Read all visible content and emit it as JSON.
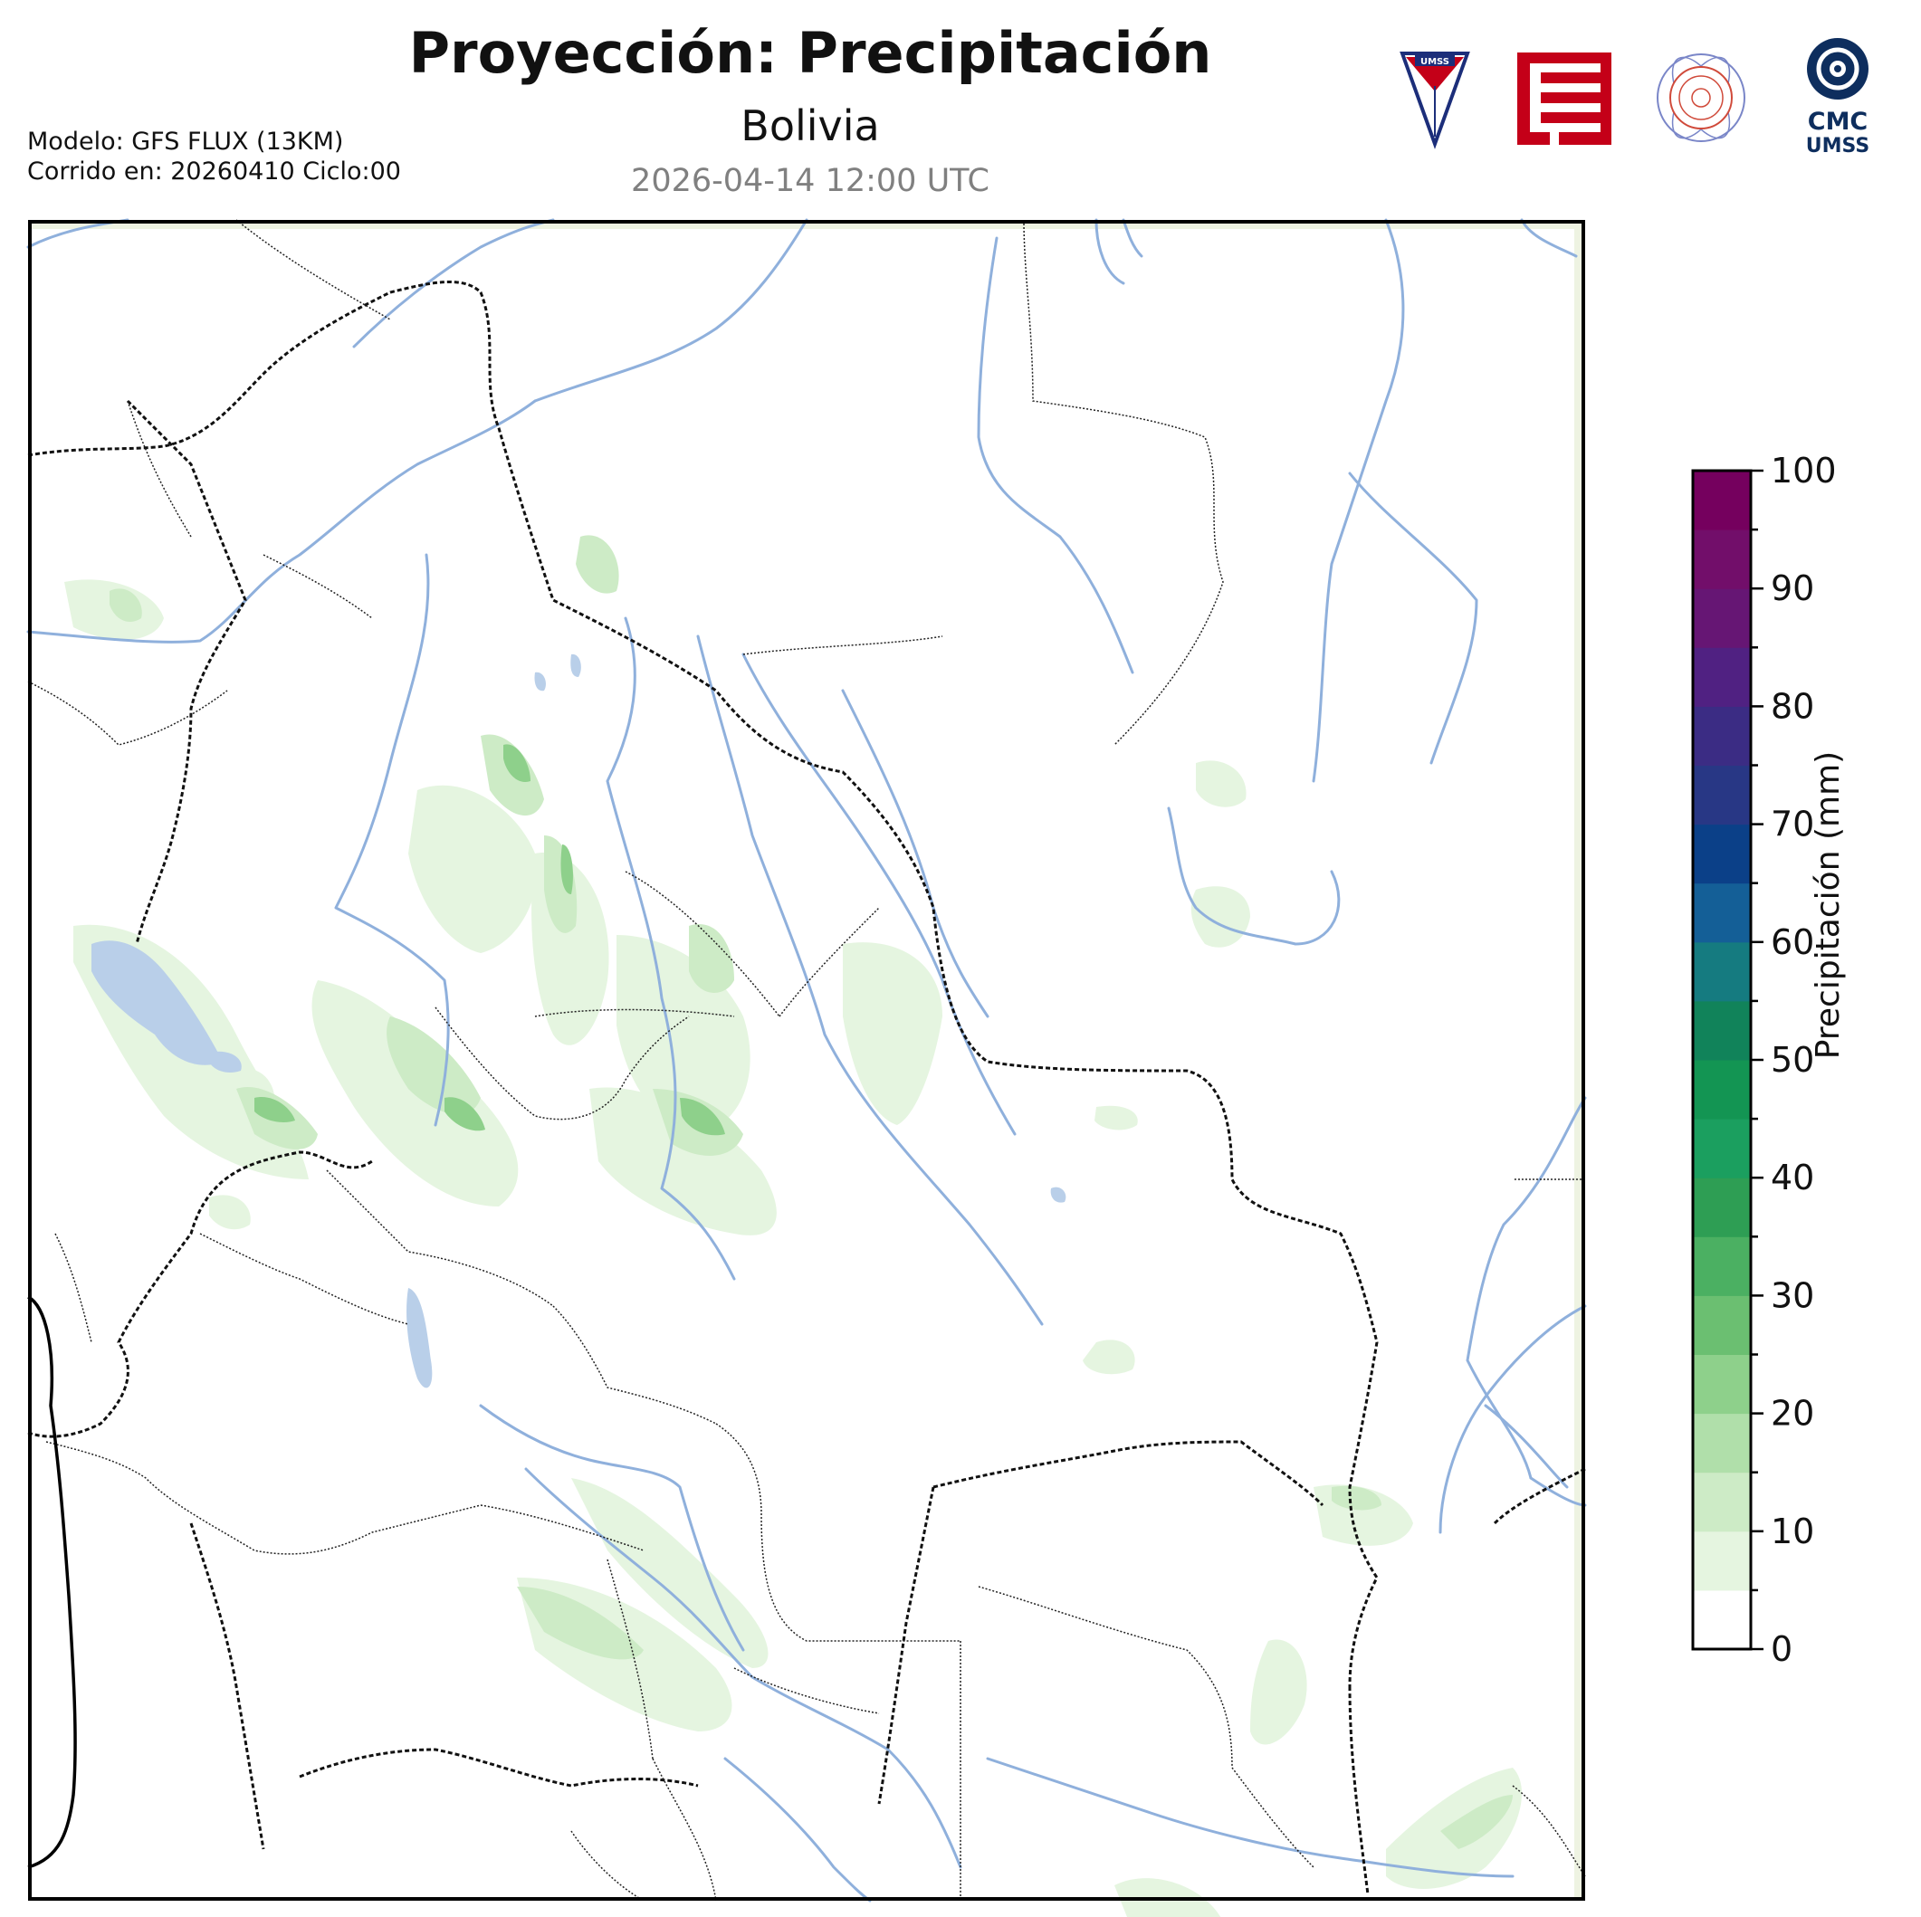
{
  "header": {
    "title": "Proyección: Precipitación",
    "subtitle": "Bolivia",
    "datetime": "2026-04-14 12:00 UTC",
    "model_line": "Modelo: GFS FLUX (13KM)",
    "run_line": "Corrido en: 20260410 Ciclo:00"
  },
  "logos": {
    "umss_shield": "UMSS",
    "cmc_line1": "CMC",
    "cmc_line2": "UMSS",
    "umss_red": "#c40018",
    "cmc_navy": "#0e2e5e"
  },
  "colorbar": {
    "label": "Precipitación (mm)",
    "ticks": [
      "0",
      "10",
      "20",
      "30",
      "40",
      "50",
      "60",
      "70",
      "80",
      "90",
      "100"
    ],
    "min": 0,
    "max": 100,
    "step": 5,
    "colors": [
      "#ffffff",
      "#e5f5e0",
      "#cdebc6",
      "#b0dfaa",
      "#8ed08b",
      "#6bbf71",
      "#4bb062",
      "#2e9e54",
      "#1b9f5f",
      "#139553",
      "#11835a",
      "#157b80",
      "#145f97",
      "#0b4088",
      "#283785",
      "#3b2c84",
      "#502182",
      "#661674",
      "#720e6a",
      "#75005e"
    ]
  },
  "map": {
    "region": "Bolivia",
    "frame_color": "#000000",
    "river_color": "#8fb0dc",
    "lake_color": "#b9cfe9",
    "precip_light": "#e5f5e0",
    "precip_mid": "#b0dfaa",
    "precip_heavy": "#6bbf71"
  }
}
